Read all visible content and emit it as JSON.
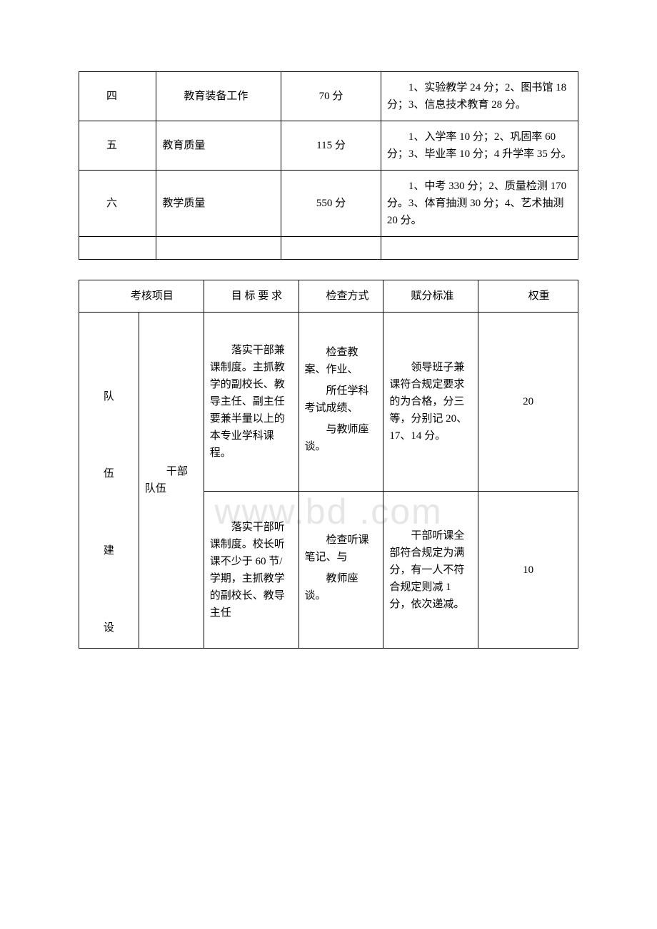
{
  "watermark": "www.bd .com",
  "table1": {
    "rows": [
      {
        "idx": "四",
        "name": "教育装备工作",
        "score": "70 分",
        "detail": "1、实验教学 24 分；2、图书馆 18 分；3、信息技术教育 28 分。"
      },
      {
        "idx": "五",
        "name": "教育质量",
        "score": "115 分",
        "detail": "1、入学率 10 分；2、巩固率 60 分；3、毕业率 10 分；4 升学率 35 分。"
      },
      {
        "idx": "六",
        "name": "教学质量",
        "score": "550 分",
        "detail": "1、中考 330 分；2、质量检测 170 分。3、体育抽测 30 分；4、艺术抽测 20 分。"
      }
    ]
  },
  "table2": {
    "headers": {
      "project": "考核项目",
      "target": "目 标 要 求",
      "check": "检查方式",
      "standard": "赋分标准",
      "weight": "权重"
    },
    "section": {
      "groupA": "队\n\n伍\n\n建\n\n设",
      "groupB": "干部队伍",
      "rows": [
        {
          "target": "落实干部兼课制度。主抓教学的副校长、教导主任、副主任要兼半量以上的本专业学科课程。",
          "check_lines": [
            "检查教案、作业、",
            "所任学科考试成绩、",
            "与教师座谈。"
          ],
          "standard": "领导班子兼课符合规定要求的为合格，分三等，分别记 20、17、14 分。",
          "weight": "20"
        },
        {
          "target": "落实干部听课制度。校长听课不少于 60 节/学期，主抓教学的副校长、教导主任",
          "check_lines": [
            "检查听课笔记、与",
            "教师座谈。"
          ],
          "standard": "干部听课全部符合规定为满分，有一人不符合规定则减 1 分，依次递减。",
          "weight": "10"
        }
      ]
    }
  },
  "colors": {
    "background": "#ffffff",
    "border": "#000000",
    "text": "#000000",
    "watermark": "#e6e6e6"
  },
  "typography": {
    "body_fontsize": 15,
    "watermark_fontsize": 50
  }
}
